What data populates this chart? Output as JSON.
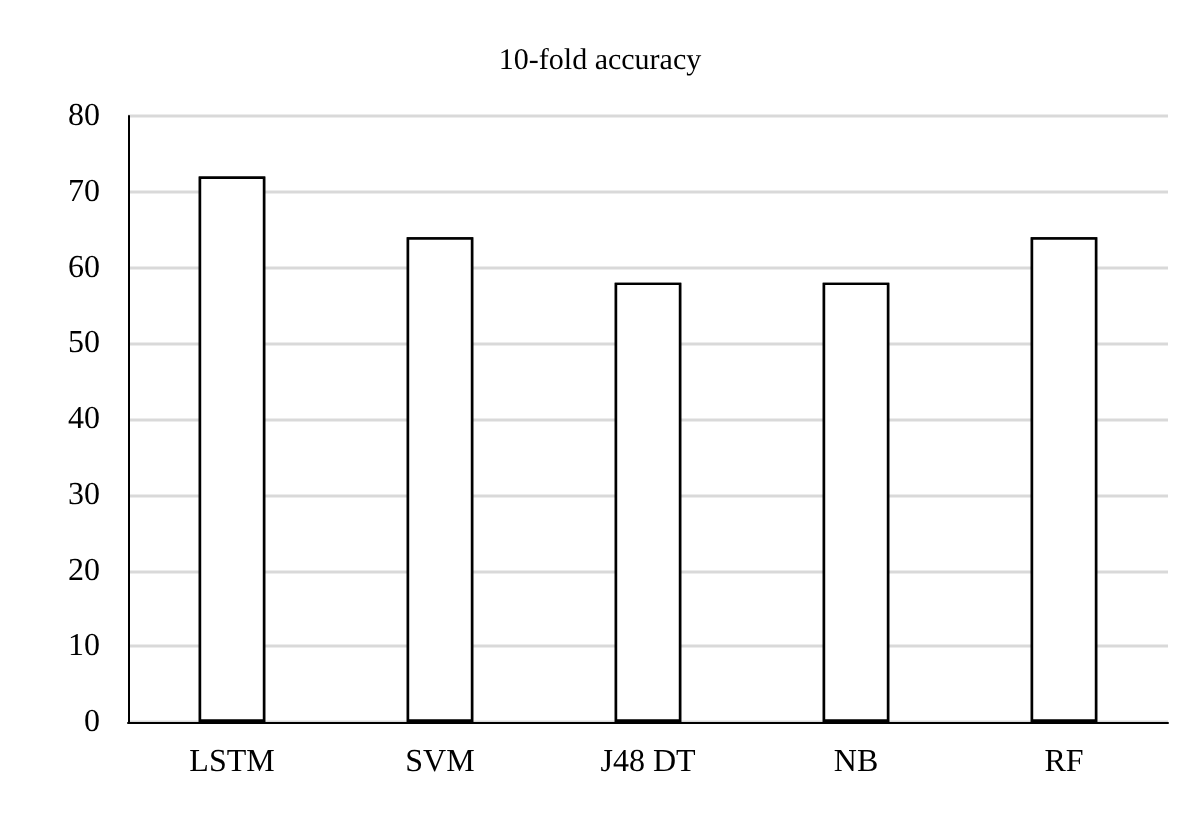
{
  "chart_data": {
    "type": "bar",
    "title": "10-fold accuracy",
    "categories": [
      "LSTM",
      "SVM",
      "J48 DT",
      "NB",
      "RF"
    ],
    "values": [
      72,
      64,
      58,
      58,
      64
    ],
    "color": "#ffffff",
    "ylim": [
      0,
      80
    ],
    "yticks": [
      0,
      10,
      20,
      30,
      40,
      50,
      60,
      70,
      80
    ],
    "grid": "y"
  }
}
